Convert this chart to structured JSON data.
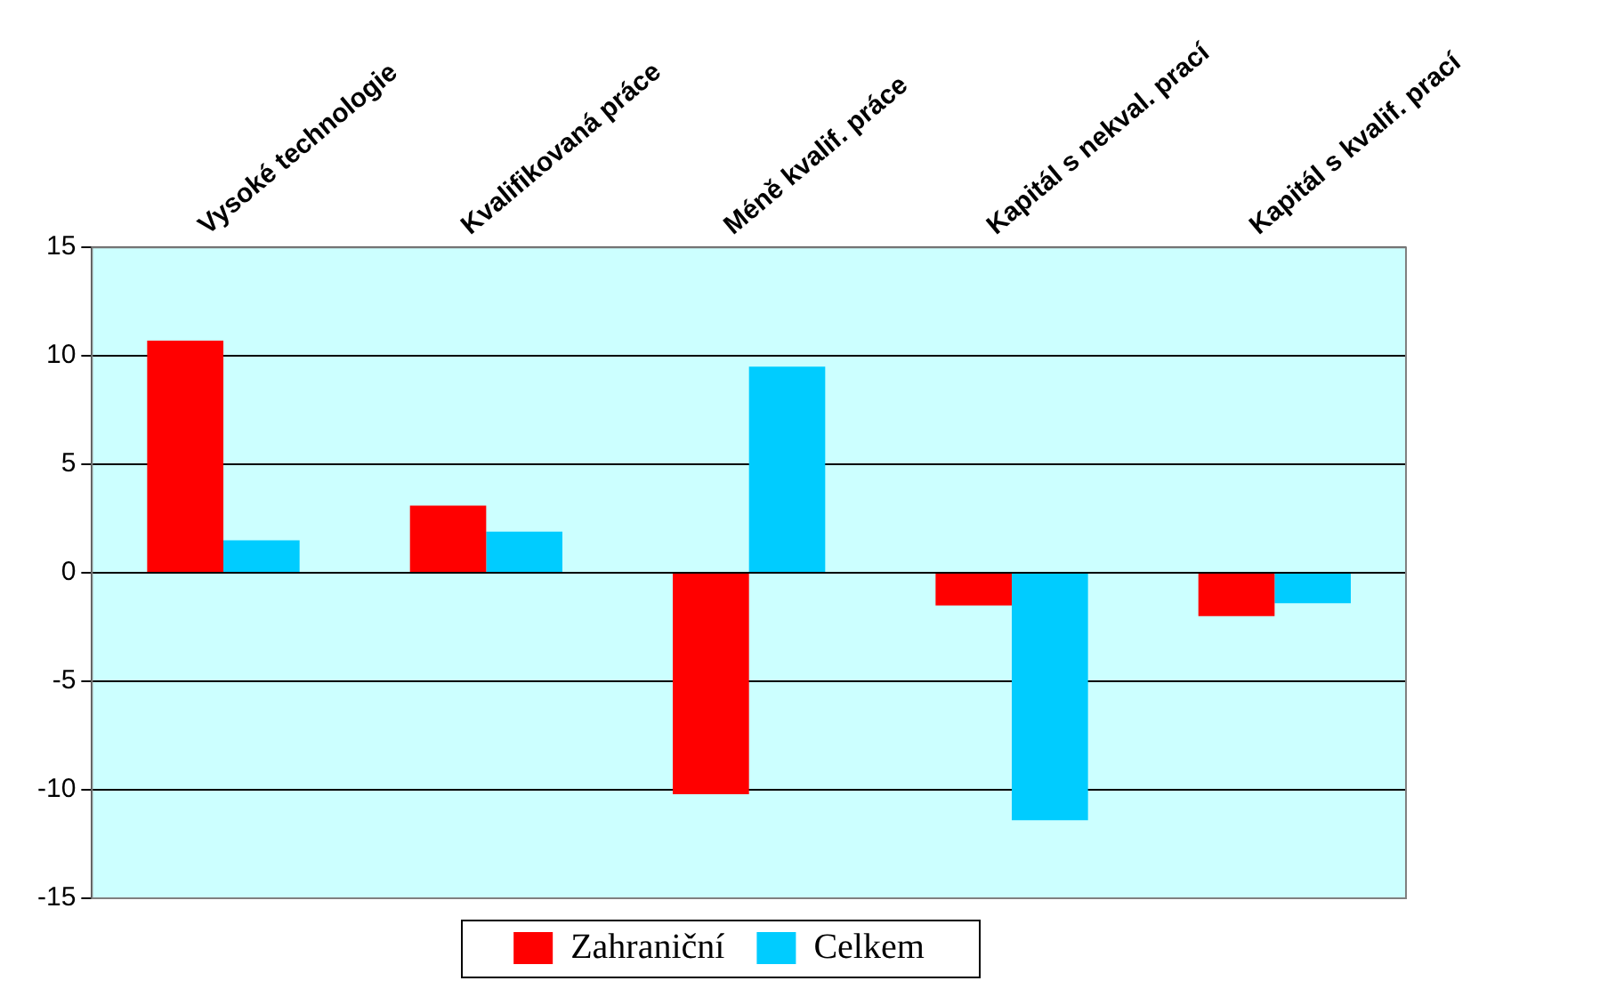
{
  "chart_data": {
    "type": "bar",
    "categories": [
      "Vysoké technologie",
      "Kvalifikovaná práce",
      "Méně kvalif. práce",
      "Kapitál s nekval. prací",
      "Kapitál s kvalif. prací"
    ],
    "series": [
      {
        "name": "Zahraniční",
        "color": "#ff0000",
        "values": [
          10.7,
          3.1,
          -10.2,
          -1.5,
          -2.0
        ]
      },
      {
        "name": "Celkem",
        "color": "#00ccff",
        "values": [
          1.5,
          1.9,
          9.5,
          -11.4,
          -1.4
        ]
      }
    ],
    "ylim": [
      -15,
      15
    ],
    "yticks": [
      -15,
      -10,
      -5,
      0,
      5,
      10,
      15
    ],
    "grid": "y",
    "legend": "bottom"
  }
}
